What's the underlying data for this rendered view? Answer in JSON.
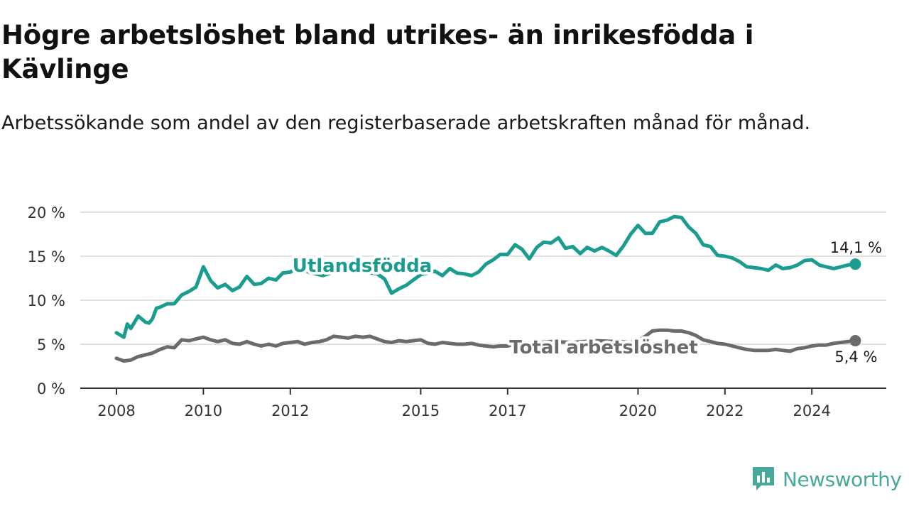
{
  "title": "Högre arbetslöshet bland utrikes- än inrikesfödda i Kävlinge",
  "subtitle": "Arbetssökande som andel av den registerbaserade arbetskraften månad för månad.",
  "brand": {
    "name": "Newsworthy",
    "logo_icon": "newsworthy-chart-icon",
    "color": "#48a89a"
  },
  "chart_data": {
    "type": "line",
    "title": "Högre arbetslöshet bland utrikes- än inrikesfödda i Kävlinge",
    "subtitle": "Arbetssökande som andel av den registerbaserade arbetskraften månad för månad.",
    "xlabel": "",
    "ylabel": "",
    "ylim": [
      0,
      20
    ],
    "xlim": [
      2008,
      2025
    ],
    "grid": "horizontal",
    "x_ticks": [
      {
        "value": 2008.0,
        "label": "2008"
      },
      {
        "value": 2010.0,
        "label": "2010"
      },
      {
        "value": 2012.0,
        "label": "2012"
      },
      {
        "value": 2015.0,
        "label": "2015"
      },
      {
        "value": 2017.0,
        "label": "2017"
      },
      {
        "value": 2020.0,
        "label": "2020"
      },
      {
        "value": 2022.0,
        "label": "2022"
      },
      {
        "value": 2024.0,
        "label": "2024"
      }
    ],
    "y_ticks": [
      {
        "value": 0,
        "label": "0 %"
      },
      {
        "value": 5,
        "label": "5 %"
      },
      {
        "value": 10,
        "label": "10 %"
      },
      {
        "value": 15,
        "label": "15 %"
      },
      {
        "value": 20,
        "label": "20 %"
      }
    ],
    "series": [
      {
        "name": "Utlandsfödda",
        "color": "#1a9c8e",
        "end_label": "14,1 %",
        "points": [
          [
            2008.0,
            6.3
          ],
          [
            2008.17,
            5.8
          ],
          [
            2008.25,
            7.3
          ],
          [
            2008.33,
            6.8
          ],
          [
            2008.5,
            8.2
          ],
          [
            2008.67,
            7.5
          ],
          [
            2008.75,
            7.4
          ],
          [
            2008.83,
            7.9
          ],
          [
            2008.92,
            9.1
          ],
          [
            2009.0,
            9.2
          ],
          [
            2009.17,
            9.6
          ],
          [
            2009.33,
            9.6
          ],
          [
            2009.5,
            10.6
          ],
          [
            2009.67,
            11.0
          ],
          [
            2009.83,
            11.5
          ],
          [
            2010.0,
            13.8
          ],
          [
            2010.17,
            12.2
          ],
          [
            2010.33,
            11.4
          ],
          [
            2010.5,
            11.8
          ],
          [
            2010.67,
            11.1
          ],
          [
            2010.83,
            11.5
          ],
          [
            2011.0,
            12.7
          ],
          [
            2011.17,
            11.8
          ],
          [
            2011.33,
            11.9
          ],
          [
            2011.5,
            12.5
          ],
          [
            2011.67,
            12.3
          ],
          [
            2011.83,
            13.1
          ],
          [
            2012.0,
            13.2
          ],
          [
            2012.17,
            13.7
          ],
          [
            2012.42,
            13.2
          ],
          [
            2012.75,
            12.8
          ],
          [
            2013.0,
            13.2
          ],
          [
            2013.17,
            13.5
          ],
          [
            2013.5,
            13.7
          ],
          [
            2013.67,
            13.2
          ],
          [
            2014.0,
            13.0
          ],
          [
            2014.17,
            12.4
          ],
          [
            2014.33,
            10.8
          ],
          [
            2014.5,
            11.3
          ],
          [
            2014.67,
            11.7
          ],
          [
            2014.83,
            12.3
          ],
          [
            2015.0,
            12.9
          ],
          [
            2015.17,
            13.1
          ],
          [
            2015.33,
            13.3
          ],
          [
            2015.5,
            12.8
          ],
          [
            2015.67,
            13.6
          ],
          [
            2015.83,
            13.1
          ],
          [
            2016.0,
            13.0
          ],
          [
            2016.17,
            12.8
          ],
          [
            2016.33,
            13.2
          ],
          [
            2016.5,
            14.1
          ],
          [
            2016.67,
            14.6
          ],
          [
            2016.83,
            15.2
          ],
          [
            2017.0,
            15.2
          ],
          [
            2017.17,
            16.3
          ],
          [
            2017.33,
            15.8
          ],
          [
            2017.5,
            14.7
          ],
          [
            2017.67,
            16.0
          ],
          [
            2017.83,
            16.6
          ],
          [
            2018.0,
            16.5
          ],
          [
            2018.17,
            17.1
          ],
          [
            2018.33,
            15.9
          ],
          [
            2018.5,
            16.1
          ],
          [
            2018.67,
            15.3
          ],
          [
            2018.83,
            16.0
          ],
          [
            2019.0,
            15.6
          ],
          [
            2019.17,
            16.0
          ],
          [
            2019.33,
            15.6
          ],
          [
            2019.5,
            15.1
          ],
          [
            2019.67,
            16.2
          ],
          [
            2019.83,
            17.5
          ],
          [
            2020.0,
            18.5
          ],
          [
            2020.17,
            17.6
          ],
          [
            2020.33,
            17.6
          ],
          [
            2020.5,
            18.9
          ],
          [
            2020.67,
            19.1
          ],
          [
            2020.83,
            19.5
          ],
          [
            2021.0,
            19.4
          ],
          [
            2021.17,
            18.3
          ],
          [
            2021.33,
            17.6
          ],
          [
            2021.5,
            16.3
          ],
          [
            2021.67,
            16.1
          ],
          [
            2021.83,
            15.1
          ],
          [
            2022.0,
            15.0
          ],
          [
            2022.17,
            14.8
          ],
          [
            2022.33,
            14.4
          ],
          [
            2022.5,
            13.8
          ],
          [
            2022.67,
            13.7
          ],
          [
            2022.83,
            13.6
          ],
          [
            2023.0,
            13.4
          ],
          [
            2023.17,
            14.0
          ],
          [
            2023.33,
            13.6
          ],
          [
            2023.5,
            13.7
          ],
          [
            2023.67,
            14.0
          ],
          [
            2023.83,
            14.5
          ],
          [
            2024.0,
            14.6
          ],
          [
            2024.17,
            14.0
          ],
          [
            2024.33,
            13.8
          ],
          [
            2024.5,
            13.6
          ],
          [
            2024.67,
            13.8
          ],
          [
            2024.83,
            14.0
          ],
          [
            2025.0,
            14.1
          ]
        ]
      },
      {
        "name": "Total arbetslöshet",
        "color": "#6b6b6b",
        "end_label": "5,4 %",
        "points": [
          [
            2008.0,
            3.4
          ],
          [
            2008.17,
            3.1
          ],
          [
            2008.33,
            3.2
          ],
          [
            2008.5,
            3.6
          ],
          [
            2008.67,
            3.8
          ],
          [
            2008.83,
            4.0
          ],
          [
            2009.0,
            4.4
          ],
          [
            2009.17,
            4.7
          ],
          [
            2009.33,
            4.6
          ],
          [
            2009.5,
            5.5
          ],
          [
            2009.67,
            5.4
          ],
          [
            2009.83,
            5.6
          ],
          [
            2010.0,
            5.8
          ],
          [
            2010.17,
            5.5
          ],
          [
            2010.33,
            5.3
          ],
          [
            2010.5,
            5.5
          ],
          [
            2010.67,
            5.1
          ],
          [
            2010.83,
            5.0
          ],
          [
            2011.0,
            5.3
          ],
          [
            2011.17,
            5.0
          ],
          [
            2011.33,
            4.8
          ],
          [
            2011.5,
            5.0
          ],
          [
            2011.67,
            4.8
          ],
          [
            2011.83,
            5.1
          ],
          [
            2012.0,
            5.2
          ],
          [
            2012.17,
            5.3
          ],
          [
            2012.33,
            5.0
          ],
          [
            2012.5,
            5.2
          ],
          [
            2012.67,
            5.3
          ],
          [
            2012.83,
            5.5
          ],
          [
            2013.0,
            5.9
          ],
          [
            2013.17,
            5.8
          ],
          [
            2013.33,
            5.7
          ],
          [
            2013.5,
            5.9
          ],
          [
            2013.67,
            5.8
          ],
          [
            2013.83,
            5.9
          ],
          [
            2014.0,
            5.6
          ],
          [
            2014.17,
            5.3
          ],
          [
            2014.33,
            5.2
          ],
          [
            2014.5,
            5.4
          ],
          [
            2014.67,
            5.3
          ],
          [
            2014.83,
            5.4
          ],
          [
            2015.0,
            5.5
          ],
          [
            2015.17,
            5.1
          ],
          [
            2015.33,
            5.0
          ],
          [
            2015.5,
            5.2
          ],
          [
            2015.67,
            5.1
          ],
          [
            2015.83,
            5.0
          ],
          [
            2016.0,
            5.0
          ],
          [
            2016.17,
            5.1
          ],
          [
            2016.33,
            4.9
          ],
          [
            2016.5,
            4.8
          ],
          [
            2016.67,
            4.7
          ],
          [
            2016.83,
            4.8
          ],
          [
            2017.0,
            4.8
          ],
          [
            2017.17,
            5.0
          ],
          [
            2017.5,
            5.1
          ],
          [
            2018.0,
            5.3
          ],
          [
            2018.5,
            5.2
          ],
          [
            2019.0,
            5.4
          ],
          [
            2019.5,
            5.3
          ],
          [
            2019.83,
            5.2
          ],
          [
            2020.0,
            5.4
          ],
          [
            2020.17,
            5.9
          ],
          [
            2020.33,
            6.5
          ],
          [
            2020.5,
            6.6
          ],
          [
            2020.67,
            6.6
          ],
          [
            2020.83,
            6.5
          ],
          [
            2021.0,
            6.5
          ],
          [
            2021.17,
            6.3
          ],
          [
            2021.33,
            6.0
          ],
          [
            2021.5,
            5.5
          ],
          [
            2021.67,
            5.3
          ],
          [
            2021.83,
            5.1
          ],
          [
            2022.0,
            5.0
          ],
          [
            2022.17,
            4.8
          ],
          [
            2022.33,
            4.6
          ],
          [
            2022.5,
            4.4
          ],
          [
            2022.67,
            4.3
          ],
          [
            2022.83,
            4.3
          ],
          [
            2023.0,
            4.3
          ],
          [
            2023.17,
            4.4
          ],
          [
            2023.33,
            4.3
          ],
          [
            2023.5,
            4.2
          ],
          [
            2023.67,
            4.5
          ],
          [
            2023.83,
            4.6
          ],
          [
            2024.0,
            4.8
          ],
          [
            2024.17,
            4.9
          ],
          [
            2024.33,
            4.9
          ],
          [
            2024.5,
            5.1
          ],
          [
            2024.67,
            5.2
          ],
          [
            2024.83,
            5.3
          ],
          [
            2025.0,
            5.4
          ]
        ]
      }
    ]
  }
}
